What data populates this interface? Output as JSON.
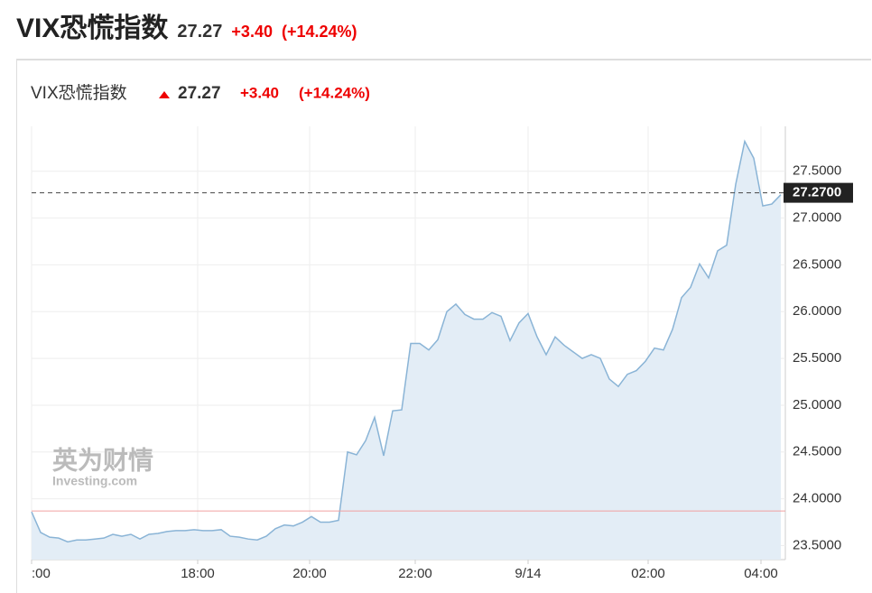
{
  "header": {
    "title": "VIX恐慌指数",
    "price": "27.27",
    "change": "+3.40",
    "change_pct": "(+14.24%)"
  },
  "watermark": {
    "cn": "英为财情",
    "en": "Investing.com"
  },
  "chart_data": {
    "type": "area",
    "color": "#8ab4d6",
    "fill": "#e3edf6",
    "values": [
      23.86,
      23.64,
      23.59,
      23.58,
      23.54,
      23.56,
      23.56,
      23.57,
      23.58,
      23.62,
      23.6,
      23.62,
      23.57,
      23.62,
      23.63,
      23.65,
      23.66,
      23.66,
      23.67,
      23.66,
      23.66,
      23.67,
      23.6,
      23.59,
      23.57,
      23.56,
      23.6,
      23.68,
      23.72,
      23.71,
      23.75,
      23.81,
      23.75,
      23.75,
      23.77,
      24.5,
      24.47,
      24.62,
      24.87,
      24.46,
      24.94,
      24.95,
      25.66,
      25.66,
      25.59,
      25.7,
      26.0,
      26.08,
      25.97,
      25.92,
      25.92,
      25.99,
      25.95,
      25.69,
      25.88,
      25.98,
      25.73,
      25.54,
      25.73,
      25.64,
      25.57,
      25.5,
      25.54,
      25.5,
      25.28,
      25.2,
      25.33,
      25.37,
      25.47,
      25.61,
      25.59,
      25.81,
      26.15,
      26.26,
      26.51,
      26.36,
      26.65,
      26.71,
      27.36,
      27.82,
      27.64,
      27.13,
      27.15,
      27.25
    ],
    "xlim": [
      0,
      83.5
    ],
    "xticks": [
      {
        "value": 0,
        "label": ":00"
      },
      {
        "value": 18.4,
        "label": "18:00"
      },
      {
        "value": 30.8,
        "label": "20:00"
      },
      {
        "value": 42.5,
        "label": "22:00"
      },
      {
        "value": 55,
        "label": "9/14"
      },
      {
        "value": 68.3,
        "label": "02:00"
      },
      {
        "value": 80.8,
        "label": "04:00"
      }
    ],
    "ylim": [
      23.35,
      27.98
    ],
    "yticks": [
      {
        "value": 23.5,
        "label": "23.5000"
      },
      {
        "value": 24,
        "label": "24.0000"
      },
      {
        "value": 24.5,
        "label": "24.5000"
      },
      {
        "value": 25,
        "label": "25.0000"
      },
      {
        "value": 25.5,
        "label": "25.5000"
      },
      {
        "value": 26,
        "label": "26.0000"
      },
      {
        "value": 26.5,
        "label": "26.5000"
      },
      {
        "value": 27,
        "label": "27.0000"
      },
      {
        "value": 27.5,
        "label": "27.5000"
      }
    ],
    "last": {
      "value": 27.27,
      "label": "27.2700"
    },
    "prev_close": 23.87,
    "grid": true
  }
}
